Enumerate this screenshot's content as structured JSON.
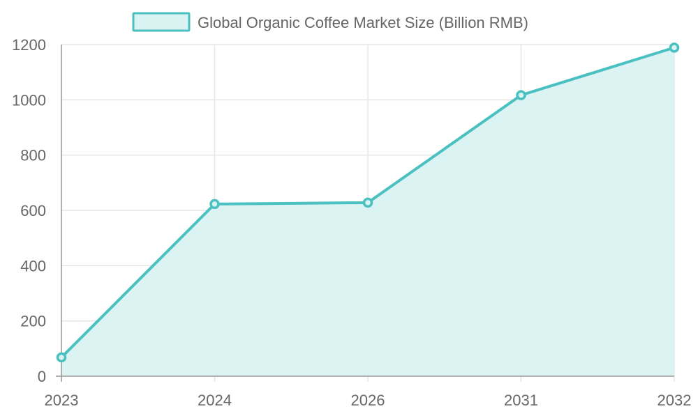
{
  "chart_data": {
    "type": "area",
    "categories": [
      "2023",
      "2024",
      "2026",
      "2031",
      "2032"
    ],
    "series": [
      {
        "name": "Global Organic Coffee Market Size (Billion RMB)",
        "values": [
          68,
          623,
          628,
          1017,
          1189
        ]
      }
    ],
    "ylim": [
      0,
      1200
    ],
    "yticks": [
      0,
      200,
      400,
      600,
      800,
      1000,
      1200
    ],
    "grid": true,
    "legend": "top-center",
    "colors": {
      "line": "#4bc0c0",
      "fill": "#d9f2f2",
      "grid": "#e5e5e5",
      "axis": "#999999",
      "text": "#666666"
    }
  }
}
